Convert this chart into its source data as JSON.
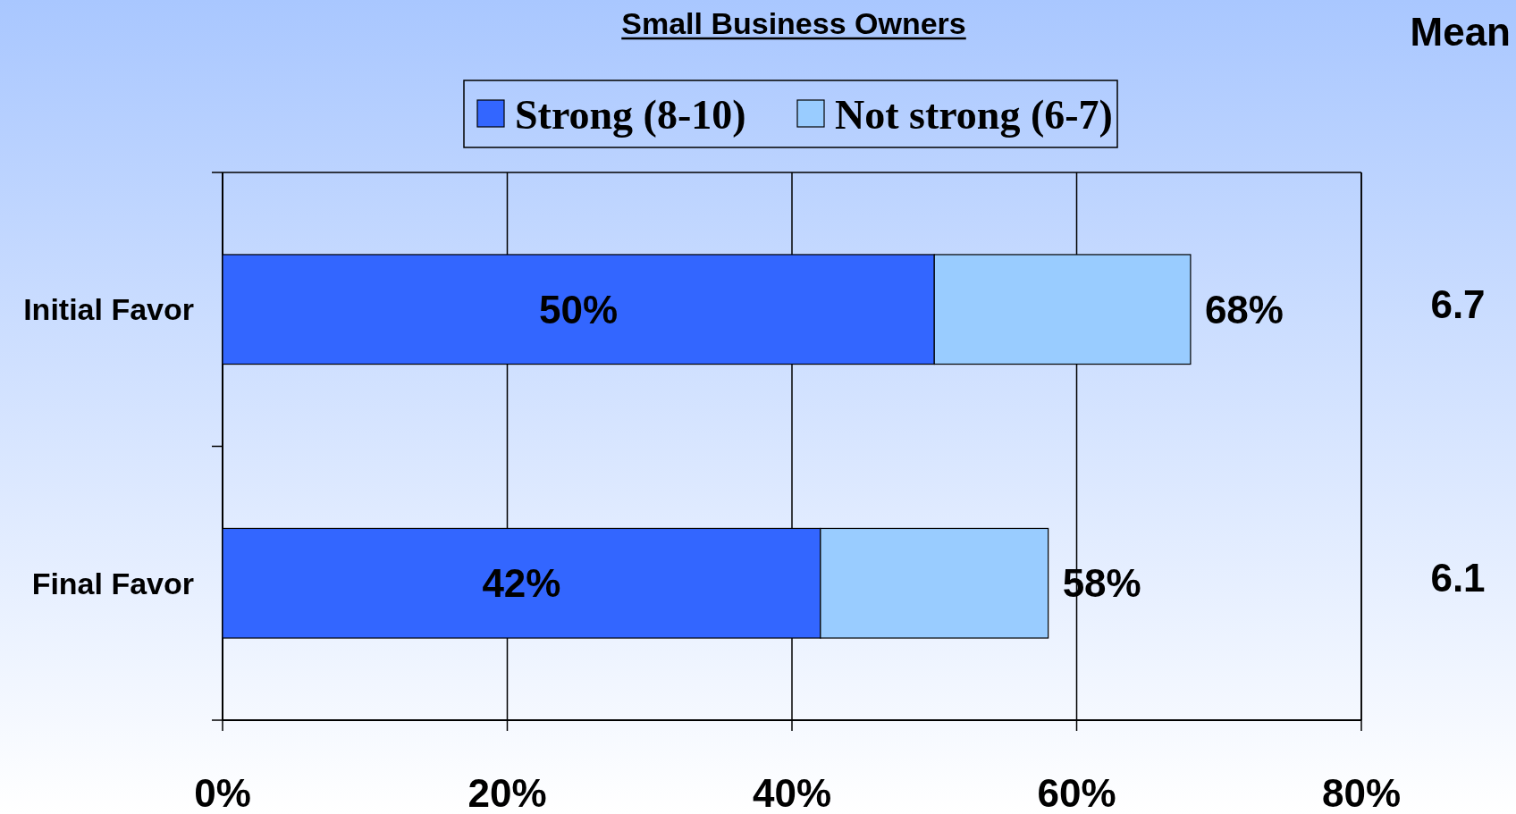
{
  "chart_data": {
    "type": "bar",
    "title": "Small Business Owners",
    "orientation": "horizontal",
    "stacked": true,
    "categories": [
      "Initial Favor",
      "Final Favor"
    ],
    "series": [
      {
        "name": "Strong (8-10)",
        "color": "#3366ff",
        "values": [
          50,
          42
        ],
        "value_labels": [
          "50%",
          "42%"
        ]
      },
      {
        "name": "Not strong (6-7)",
        "color": "#99ccff",
        "values": [
          18,
          16
        ]
      }
    ],
    "totals": [
      "68%",
      "58%"
    ],
    "xlim": [
      0,
      80
    ],
    "xticks": [
      {
        "value": 0,
        "label": "0%"
      },
      {
        "value": 20,
        "label": "20%"
      },
      {
        "value": 40,
        "label": "40%"
      },
      {
        "value": 60,
        "label": "60%"
      },
      {
        "value": 80,
        "label": "80%"
      }
    ],
    "grid": "x",
    "legend": "top",
    "annotations": [
      "Mean",
      "6.7",
      "6.1"
    ]
  }
}
